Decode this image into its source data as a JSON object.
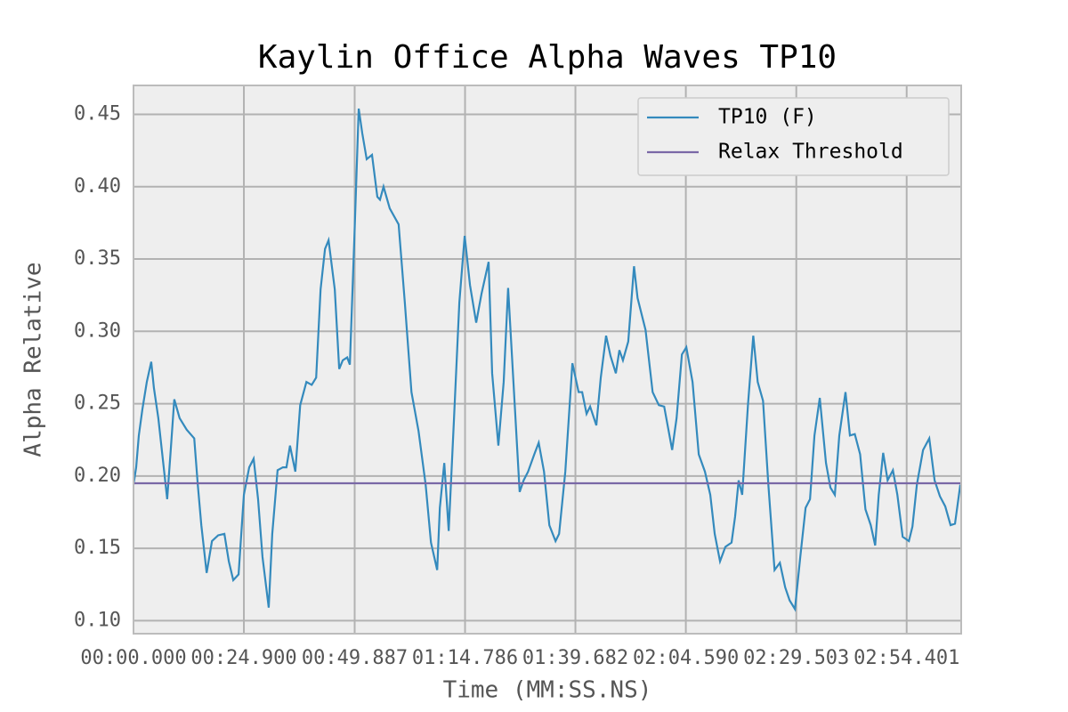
{
  "chart_data": {
    "type": "line",
    "title": "Kaylin Office Alpha Waves TP10",
    "xlabel": "Time (MM:SS.NS)",
    "ylabel": "Alpha Relative",
    "series": [
      {
        "name": "TP10 (F)",
        "color": "#348abd",
        "x": [
          0,
          0.6,
          1.2,
          2.0,
          3.0,
          4.0,
          4.6,
          5.6,
          6.6,
          7.6,
          8.4,
          9.2,
          10.4,
          12.0,
          13.7,
          14.5,
          15.3,
          16.5,
          17.7,
          19.1,
          20.5,
          21.5,
          22.5,
          23.7,
          24.9,
          26.1,
          27.1,
          28.1,
          29.1,
          30.5,
          31.3,
          32.5,
          33.7,
          34.5,
          35.3,
          36.5,
          37.6,
          39.0,
          40.2,
          41.2,
          42.2,
          43.2,
          44.0,
          45.4,
          46.4,
          47.2,
          48.2,
          48.8,
          49.8,
          50.8,
          51.6,
          52.6,
          53.8,
          55.0,
          55.6,
          56.4,
          57.8,
          59.8,
          61.2,
          62.7,
          64.3,
          65.9,
          67.1,
          68.5,
          69.1,
          70.1,
          71.1,
          72.3,
          73.5,
          74.7,
          75.9,
          77.3,
          78.5,
          80.1,
          80.9,
          82.3,
          83.5,
          84.5,
          85.7,
          87.1,
          88.0,
          89.0,
          90.4,
          91.4,
          92.6,
          93.8,
          95.2,
          96.0,
          97.4,
          99.0,
          100.4,
          101.2,
          102.2,
          103.0,
          104.4,
          105.4,
          106.6,
          107.6,
          108.8,
          109.6,
          110.4,
          111.6,
          112.9,
          113.7,
          115.5,
          117.1,
          118.5,
          119.7,
          121.5,
          122.5,
          123.7,
          124.7,
          126.1,
          127.5,
          128.9,
          130.1,
          131.1,
          132.3,
          133.5,
          134.9,
          135.7,
          136.5,
          137.3,
          138.6,
          139.8,
          140.8,
          142.0,
          143.2,
          144.6,
          145.8,
          147.0,
          148.0,
          149.2,
          150.4,
          151.6,
          152.6,
          153.6,
          154.8,
          156.2,
          157.2,
          158.2,
          159.2,
          160.6,
          161.6,
          162.7,
          163.9,
          165.1,
          166.3,
          167.3,
          168.1,
          169.1,
          170.1,
          171.3,
          172.3,
          173.5,
          174.9,
          175.7,
          176.7,
          178.1,
          179.5,
          180.7,
          181.9,
          183.1,
          184.3,
          185.3,
          186.5
        ],
        "values": [
          0.194,
          0.206,
          0.228,
          0.246,
          0.265,
          0.279,
          0.261,
          0.24,
          0.212,
          0.184,
          0.218,
          0.253,
          0.24,
          0.232,
          0.226,
          0.194,
          0.166,
          0.133,
          0.155,
          0.159,
          0.16,
          0.141,
          0.128,
          0.132,
          0.187,
          0.206,
          0.212,
          0.184,
          0.144,
          0.109,
          0.16,
          0.204,
          0.206,
          0.206,
          0.221,
          0.203,
          0.249,
          0.265,
          0.263,
          0.268,
          0.329,
          0.357,
          0.363,
          0.329,
          0.274,
          0.28,
          0.282,
          0.277,
          0.363,
          0.454,
          0.437,
          0.419,
          0.422,
          0.393,
          0.391,
          0.4,
          0.385,
          0.374,
          0.32,
          0.258,
          0.231,
          0.194,
          0.154,
          0.135,
          0.178,
          0.209,
          0.162,
          0.24,
          0.32,
          0.366,
          0.332,
          0.306,
          0.326,
          0.348,
          0.271,
          0.221,
          0.265,
          0.33,
          0.265,
          0.189,
          0.197,
          0.203,
          0.215,
          0.223,
          0.203,
          0.166,
          0.155,
          0.16,
          0.203,
          0.278,
          0.258,
          0.258,
          0.243,
          0.248,
          0.235,
          0.268,
          0.297,
          0.283,
          0.271,
          0.287,
          0.28,
          0.293,
          0.345,
          0.323,
          0.301,
          0.258,
          0.249,
          0.248,
          0.218,
          0.24,
          0.284,
          0.289,
          0.265,
          0.215,
          0.203,
          0.187,
          0.16,
          0.141,
          0.151,
          0.154,
          0.172,
          0.197,
          0.187,
          0.249,
          0.297,
          0.265,
          0.252,
          0.194,
          0.135,
          0.14,
          0.123,
          0.114,
          0.108,
          0.144,
          0.178,
          0.184,
          0.228,
          0.254,
          0.209,
          0.192,
          0.187,
          0.228,
          0.258,
          0.228,
          0.229,
          0.215,
          0.177,
          0.166,
          0.152,
          0.187,
          0.216,
          0.197,
          0.204,
          0.187,
          0.158,
          0.155,
          0.165,
          0.194,
          0.218,
          0.226,
          0.197,
          0.186,
          0.179,
          0.166,
          0.167,
          0.194
        ]
      },
      {
        "name": "Relax Threshold",
        "color": "#7a68a6",
        "x": [
          0,
          186.7
        ],
        "values": [
          0.195,
          0.195
        ]
      }
    ],
    "xlim": [
      0,
      186.7
    ],
    "xticks": [
      {
        "value": 0,
        "label": "00:00.000"
      },
      {
        "value": 24.9,
        "label": "00:24.900"
      },
      {
        "value": 49.887,
        "label": "00:49.887"
      },
      {
        "value": 74.786,
        "label": "01:14.786"
      },
      {
        "value": 99.682,
        "label": "01:39.682"
      },
      {
        "value": 124.59,
        "label": "02:04.590"
      },
      {
        "value": 149.503,
        "label": "02:29.503"
      },
      {
        "value": 174.401,
        "label": "02:54.401"
      }
    ],
    "ylim": [
      0.091,
      0.47
    ],
    "yticks": [
      {
        "value": 0.1,
        "label": "0.10"
      },
      {
        "value": 0.15,
        "label": "0.15"
      },
      {
        "value": 0.2,
        "label": "0.20"
      },
      {
        "value": 0.25,
        "label": "0.25"
      },
      {
        "value": 0.3,
        "label": "0.30"
      },
      {
        "value": 0.35,
        "label": "0.35"
      },
      {
        "value": 0.4,
        "label": "0.40"
      },
      {
        "value": 0.45,
        "label": "0.45"
      }
    ],
    "grid": true,
    "legend": "upper right"
  }
}
